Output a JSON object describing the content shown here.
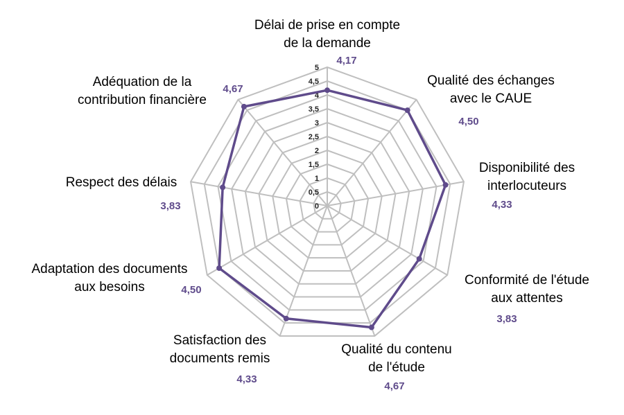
{
  "chart_data": {
    "type": "radar",
    "categories": [
      "Délai de prise en compte de la demande",
      "Qualité des échanges avec le CAUE",
      "Disponibilité des interlocuteurs",
      "Conformité de l'étude aux attentes",
      "Qualité du contenu de l'étude",
      "Satisfaction des documents remis",
      "Adaptation des documents aux besoins",
      "Respect des délais",
      "Adéquation de la contribution financière"
    ],
    "category_lines": [
      [
        "Délai de prise en compte",
        "de la demande"
      ],
      [
        "Qualité des échanges",
        "avec le CAUE"
      ],
      [
        "Disponibilité des",
        "interlocuteurs"
      ],
      [
        "Conformité de l'étude",
        "aux attentes"
      ],
      [
        "Qualité du contenu",
        "de l'étude"
      ],
      [
        "Satisfaction des",
        "documents remis"
      ],
      [
        "Adaptation des documents",
        "aux besoins"
      ],
      [
        "Respect des délais"
      ],
      [
        "Adéquation de la",
        "contribution financière"
      ]
    ],
    "values": [
      4.17,
      4.5,
      4.33,
      3.83,
      4.67,
      4.33,
      4.5,
      3.83,
      4.67
    ],
    "value_labels": [
      "4,17",
      "4,50",
      "4,33",
      "3,83",
      "4,67",
      "4,33",
      "4,50",
      "3,83",
      "4,67"
    ],
    "rlim": [
      0,
      5
    ],
    "ticks": [
      "0",
      "0,5",
      "1",
      "1,5",
      "2",
      "2,5",
      "3",
      "3,5",
      "4",
      "4,5",
      "5"
    ],
    "grid": true,
    "legend": "none",
    "colors": {
      "series": "#5f4b8b",
      "value_label": "#5f4b8b",
      "grid": "#bfbfbf"
    }
  }
}
